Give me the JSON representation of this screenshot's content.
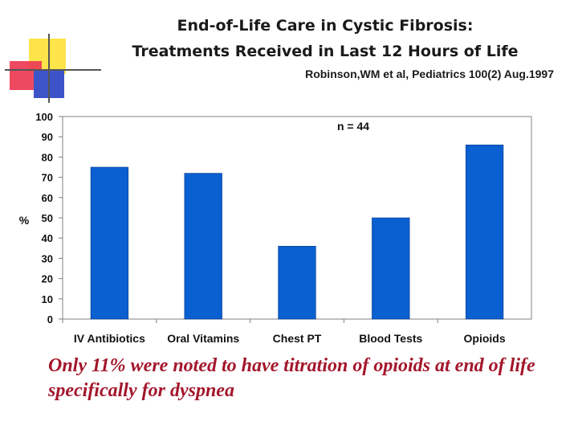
{
  "slide": {
    "title_line1": "End-of-Life Care in Cystic Fibrosis:",
    "title_line2": "Treatments Received in Last 12 Hours of Life",
    "citation": "Robinson,WM  et al,   Pediatrics 100(2) Aug.1997",
    "caption": "Only 11% were noted to have titration of opioids at end of life specifically for dyspnea"
  },
  "chart_data": {
    "type": "bar",
    "categories": [
      "IV Antibiotics",
      "Oral Vitamins",
      "Chest PT",
      "Blood Tests",
      "Opioids"
    ],
    "values": [
      75,
      72,
      36,
      50,
      86
    ],
    "title": "",
    "xlabel": "",
    "ylabel": "%",
    "ylim": [
      0,
      100
    ],
    "yticks": [
      0,
      10,
      20,
      30,
      40,
      50,
      60,
      70,
      80,
      90,
      100
    ],
    "annotation": "n = 44",
    "grid": false,
    "legend": "none",
    "bar_color": "#0a5fd1"
  }
}
